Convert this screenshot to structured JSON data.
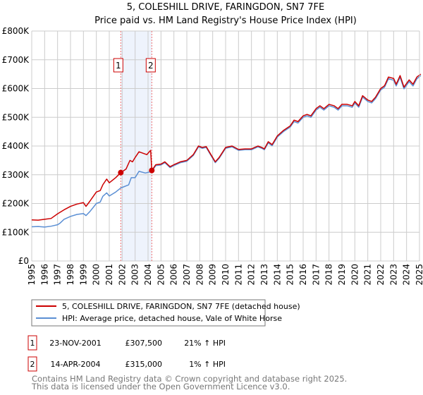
{
  "chart_data": {
    "type": "line",
    "title": "5, COLESHILL DRIVE, FARINGDON, SN7 7FE",
    "subtitle": "Price paid vs. HM Land Registry's House Price Index (HPI)",
    "xlabel": "",
    "ylabel": "",
    "xlim": [
      1995,
      2025
    ],
    "ylim": [
      0,
      800000
    ],
    "grid": true,
    "x_ticks": [
      "1995",
      "1996",
      "1997",
      "1998",
      "1999",
      "2000",
      "2001",
      "2002",
      "2003",
      "2004",
      "2005",
      "2006",
      "2007",
      "2008",
      "2009",
      "2010",
      "2011",
      "2012",
      "2013",
      "2014",
      "2015",
      "2016",
      "2017",
      "2018",
      "2019",
      "2020",
      "2021",
      "2022",
      "2023",
      "2024",
      "2025"
    ],
    "y_ticks": [
      {
        "value": 0,
        "label": "£0"
      },
      {
        "value": 100000,
        "label": "£100K"
      },
      {
        "value": 200000,
        "label": "£200K"
      },
      {
        "value": 300000,
        "label": "£300K"
      },
      {
        "value": 400000,
        "label": "£400K"
      },
      {
        "value": 500000,
        "label": "£500K"
      },
      {
        "value": 600000,
        "label": "£600K"
      },
      {
        "value": 700000,
        "label": "£700K"
      },
      {
        "value": 800000,
        "label": "£800K"
      }
    ],
    "series": [
      {
        "name": "5, COLESHILL DRIVE, FARINGDON, SN7 7FE (detached house)",
        "color": "#cc0000",
        "points": [
          [
            1995,
            143000
          ],
          [
            1995.5,
            142000
          ],
          [
            1996,
            145000
          ],
          [
            1996.5,
            148000
          ],
          [
            1997,
            164000
          ],
          [
            1997.5,
            178000
          ],
          [
            1998,
            190000
          ],
          [
            1998.5,
            198000
          ],
          [
            1999,
            203000
          ],
          [
            1999.2,
            190000
          ],
          [
            1999.5,
            208000
          ],
          [
            2000,
            240000
          ],
          [
            2000.3,
            245000
          ],
          [
            2000.5,
            265000
          ],
          [
            2000.8,
            285000
          ],
          [
            2001,
            272000
          ],
          [
            2001.5,
            290000
          ],
          [
            2001.89,
            307500
          ],
          [
            2002.3,
            320000
          ],
          [
            2002.6,
            350000
          ],
          [
            2002.8,
            345000
          ],
          [
            2003,
            360000
          ],
          [
            2003.3,
            380000
          ],
          [
            2003.6,
            375000
          ],
          [
            2003.9,
            370000
          ],
          [
            2004.2,
            385000
          ],
          [
            2004.29,
            315000
          ],
          [
            2004.6,
            335000
          ],
          [
            2005,
            337000
          ],
          [
            2005.3,
            345000
          ],
          [
            2005.7,
            328000
          ],
          [
            2006,
            335000
          ],
          [
            2006.5,
            345000
          ],
          [
            2007,
            350000
          ],
          [
            2007.5,
            370000
          ],
          [
            2007.9,
            400000
          ],
          [
            2008.2,
            395000
          ],
          [
            2008.5,
            398000
          ],
          [
            2008.8,
            375000
          ],
          [
            2009.2,
            345000
          ],
          [
            2009.5,
            360000
          ],
          [
            2010,
            395000
          ],
          [
            2010.5,
            400000
          ],
          [
            2011,
            388000
          ],
          [
            2011.5,
            390000
          ],
          [
            2012,
            390000
          ],
          [
            2012.5,
            400000
          ],
          [
            2012.8,
            395000
          ],
          [
            2013,
            390000
          ],
          [
            2013.3,
            415000
          ],
          [
            2013.6,
            405000
          ],
          [
            2014,
            435000
          ],
          [
            2014.5,
            455000
          ],
          [
            2015,
            470000
          ],
          [
            2015.3,
            490000
          ],
          [
            2015.6,
            485000
          ],
          [
            2016,
            505000
          ],
          [
            2016.3,
            510000
          ],
          [
            2016.6,
            505000
          ],
          [
            2017,
            530000
          ],
          [
            2017.3,
            540000
          ],
          [
            2017.6,
            530000
          ],
          [
            2018,
            545000
          ],
          [
            2018.4,
            540000
          ],
          [
            2018.7,
            530000
          ],
          [
            2019,
            545000
          ],
          [
            2019.4,
            545000
          ],
          [
            2019.8,
            540000
          ],
          [
            2020,
            555000
          ],
          [
            2020.3,
            540000
          ],
          [
            2020.6,
            575000
          ],
          [
            2021,
            560000
          ],
          [
            2021.3,
            555000
          ],
          [
            2021.6,
            570000
          ],
          [
            2022,
            600000
          ],
          [
            2022.3,
            610000
          ],
          [
            2022.6,
            640000
          ],
          [
            2023,
            635000
          ],
          [
            2023.2,
            615000
          ],
          [
            2023.5,
            645000
          ],
          [
            2023.8,
            605000
          ],
          [
            2024.2,
            630000
          ],
          [
            2024.5,
            615000
          ],
          [
            2024.8,
            640000
          ],
          [
            2025.1,
            650000
          ]
        ]
      },
      {
        "name": "HPI: Average price, detached house, Vale of White Horse",
        "color": "#5b8fd4",
        "points": [
          [
            1995,
            119000
          ],
          [
            1995.5,
            120000
          ],
          [
            1996,
            118000
          ],
          [
            1996.5,
            121000
          ],
          [
            1997,
            126000
          ],
          [
            1997.2,
            132000
          ],
          [
            1997.5,
            145000
          ],
          [
            1998,
            155000
          ],
          [
            1998.5,
            162000
          ],
          [
            1999,
            165000
          ],
          [
            1999.2,
            158000
          ],
          [
            1999.5,
            172000
          ],
          [
            2000,
            200000
          ],
          [
            2000.3,
            205000
          ],
          [
            2000.5,
            225000
          ],
          [
            2000.8,
            237000
          ],
          [
            2001,
            226000
          ],
          [
            2001.5,
            240000
          ],
          [
            2001.89,
            254000
          ],
          [
            2002.5,
            265000
          ],
          [
            2002.7,
            290000
          ],
          [
            2003,
            290000
          ],
          [
            2003.3,
            312000
          ],
          [
            2003.8,
            306000
          ],
          [
            2004.29,
            312000
          ],
          [
            2004.6,
            332000
          ],
          [
            2005,
            334000
          ],
          [
            2005.3,
            342000
          ],
          [
            2005.7,
            325000
          ],
          [
            2006,
            332000
          ],
          [
            2006.5,
            342000
          ],
          [
            2007,
            347000
          ],
          [
            2007.5,
            367000
          ],
          [
            2007.9,
            397000
          ],
          [
            2008.2,
            392000
          ],
          [
            2008.5,
            395000
          ],
          [
            2008.8,
            372000
          ],
          [
            2009.2,
            342000
          ],
          [
            2009.5,
            357000
          ],
          [
            2010,
            392000
          ],
          [
            2010.5,
            397000
          ],
          [
            2011,
            385000
          ],
          [
            2011.5,
            387000
          ],
          [
            2012,
            387000
          ],
          [
            2012.5,
            397000
          ],
          [
            2012.8,
            392000
          ],
          [
            2013,
            387000
          ],
          [
            2013.3,
            411000
          ],
          [
            2013.6,
            401000
          ],
          [
            2014,
            431000
          ],
          [
            2014.5,
            451000
          ],
          [
            2015,
            466000
          ],
          [
            2015.3,
            485000
          ],
          [
            2015.6,
            480000
          ],
          [
            2016,
            500000
          ],
          [
            2016.3,
            505000
          ],
          [
            2016.6,
            500000
          ],
          [
            2017,
            525000
          ],
          [
            2017.3,
            535000
          ],
          [
            2017.6,
            525000
          ],
          [
            2018,
            540000
          ],
          [
            2018.4,
            535000
          ],
          [
            2018.7,
            525000
          ],
          [
            2019,
            540000
          ],
          [
            2019.4,
            540000
          ],
          [
            2019.8,
            535000
          ],
          [
            2020,
            550000
          ],
          [
            2020.3,
            535000
          ],
          [
            2020.6,
            570000
          ],
          [
            2021,
            555000
          ],
          [
            2021.3,
            550000
          ],
          [
            2021.6,
            565000
          ],
          [
            2022,
            595000
          ],
          [
            2022.3,
            605000
          ],
          [
            2022.6,
            634000
          ],
          [
            2023,
            629000
          ],
          [
            2023.2,
            609000
          ],
          [
            2023.5,
            639000
          ],
          [
            2023.8,
            599000
          ],
          [
            2024.2,
            624000
          ],
          [
            2024.5,
            609000
          ],
          [
            2024.8,
            634000
          ],
          [
            2025.1,
            645000
          ]
        ]
      }
    ],
    "sales": [
      {
        "label": "1",
        "x": 2001.89,
        "value": 307500
      },
      {
        "label": "2",
        "x": 2004.29,
        "value": 315000
      }
    ],
    "shaded_range": [
      2001.89,
      2004.29
    ],
    "legend_placement": "below"
  },
  "table": [
    {
      "num": "1",
      "date": "23-NOV-2001",
      "price": "£307,500",
      "hpi": "21% ↑ HPI"
    },
    {
      "num": "2",
      "date": "14-APR-2004",
      "price": "£315,000",
      "hpi": "1% ↑ HPI"
    }
  ],
  "footer": {
    "line1": "Contains HM Land Registry data © Crown copyright and database right 2025.",
    "line2": "This data is licensed under the Open Government Licence v3.0."
  }
}
